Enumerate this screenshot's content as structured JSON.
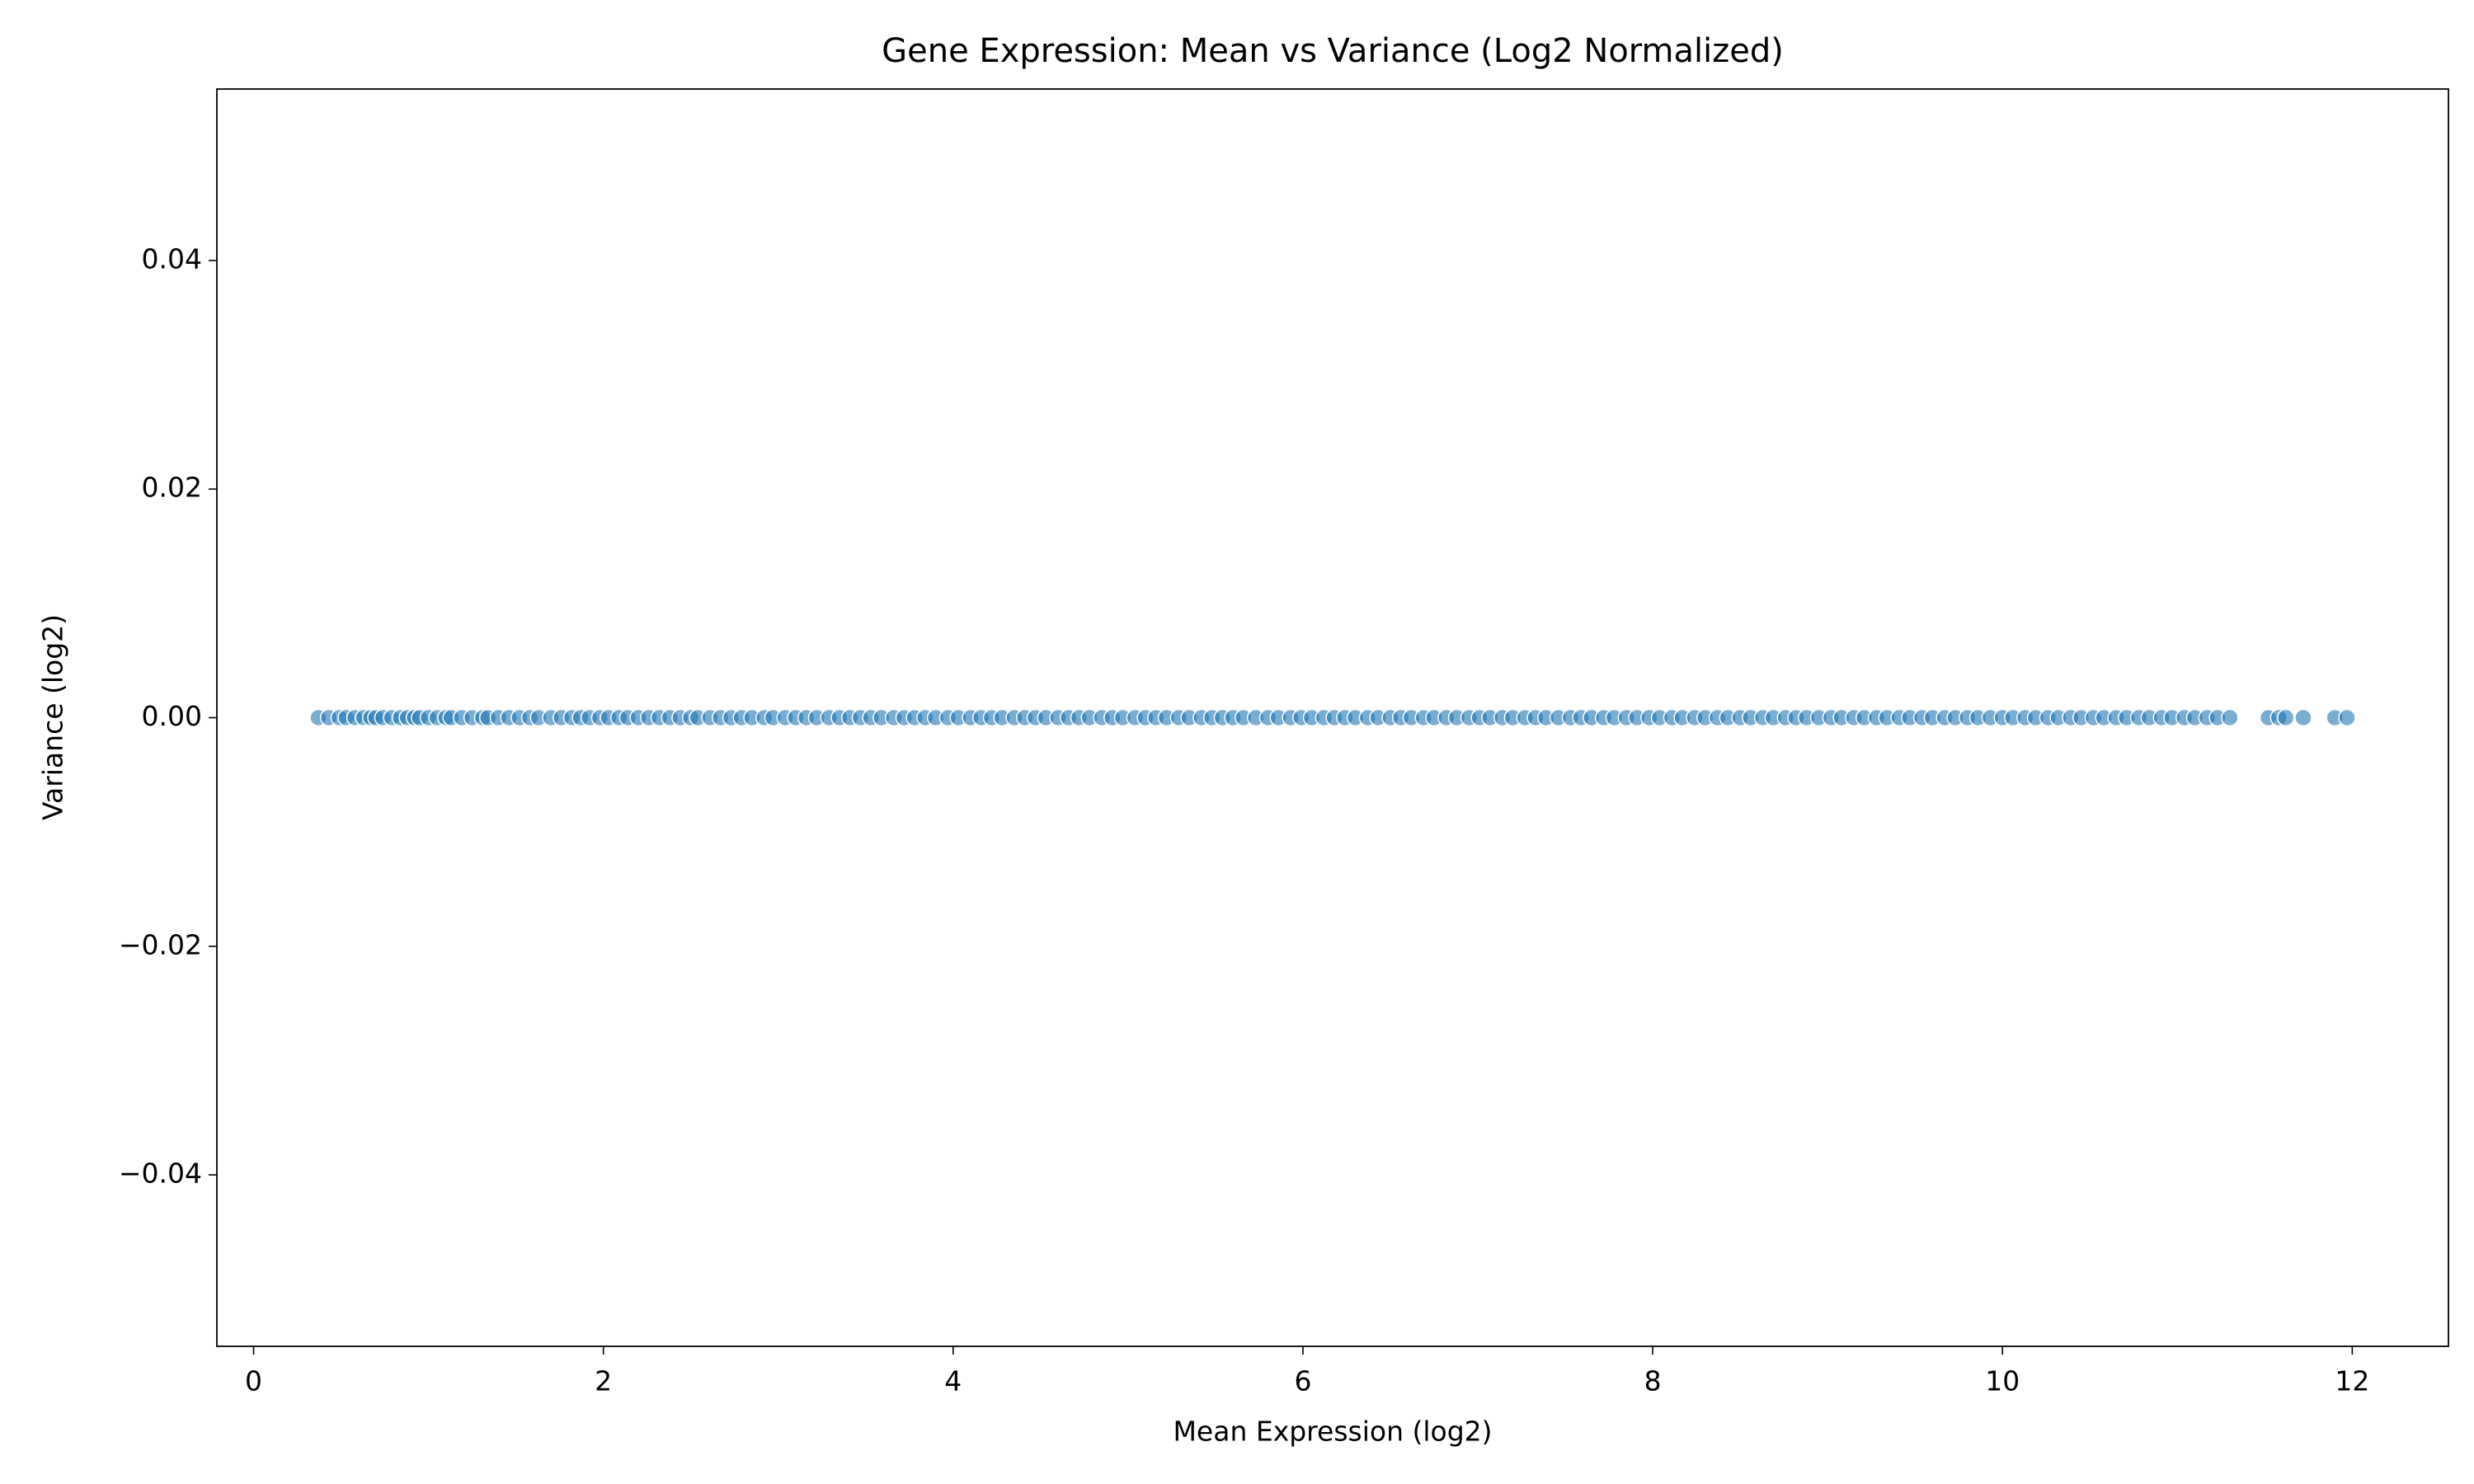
{
  "chart_data": {
    "type": "scatter",
    "title": "Gene Expression: Mean vs Variance (Log2 Normalized)",
    "xlabel": "Mean Expression (log2)",
    "ylabel": "Variance (log2)",
    "color": "#1f77b4",
    "x": [
      0.37,
      0.43,
      0.49,
      0.53,
      0.58,
      0.63,
      0.67,
      0.7,
      0.74,
      0.79,
      0.84,
      0.88,
      0.92,
      0.95,
      1.0,
      1.05,
      1.1,
      1.13,
      1.19,
      1.25,
      1.31,
      1.34,
      1.4,
      1.46,
      1.52,
      1.58,
      1.63,
      1.7,
      1.76,
      1.82,
      1.87,
      1.92,
      1.98,
      2.03,
      2.09,
      2.14,
      2.2,
      2.26,
      2.32,
      2.38,
      2.44,
      2.5,
      2.54,
      2.61,
      2.67,
      2.73,
      2.79,
      2.85,
      2.92,
      2.97,
      3.04,
      3.1,
      3.16,
      3.22,
      3.29,
      3.35,
      3.41,
      3.47,
      3.53,
      3.59,
      3.66,
      3.72,
      3.78,
      3.84,
      3.9,
      3.97,
      4.03,
      4.1,
      4.16,
      4.22,
      4.28,
      4.35,
      4.41,
      4.47,
      4.53,
      4.6,
      4.66,
      4.72,
      4.78,
      4.85,
      4.91,
      4.97,
      5.04,
      5.1,
      5.16,
      5.22,
      5.29,
      5.35,
      5.42,
      5.48,
      5.54,
      5.6,
      5.66,
      5.73,
      5.8,
      5.86,
      5.93,
      5.99,
      6.05,
      6.12,
      6.18,
      6.24,
      6.3,
      6.37,
      6.43,
      6.5,
      6.56,
      6.62,
      6.69,
      6.75,
      6.82,
      6.88,
      6.95,
      7.01,
      7.07,
      7.14,
      7.2,
      7.27,
      7.33,
      7.39,
      7.46,
      7.53,
      7.59,
      7.65,
      7.72,
      7.78,
      7.85,
      7.91,
      7.98,
      8.04,
      8.11,
      8.17,
      8.24,
      8.3,
      8.37,
      8.43,
      8.5,
      8.56,
      8.63,
      8.69,
      8.76,
      8.82,
      8.88,
      8.95,
      9.02,
      9.08,
      9.15,
      9.21,
      9.28,
      9.34,
      9.41,
      9.47,
      9.54,
      9.6,
      9.67,
      9.73,
      9.8,
      9.86,
      9.93,
      10.0,
      10.06,
      10.13,
      10.19,
      10.26,
      10.32,
      10.39,
      10.45,
      10.52,
      10.58,
      10.65,
      10.71,
      10.78,
      10.84,
      10.91,
      10.97,
      11.04,
      11.1,
      11.17,
      11.23,
      11.3,
      11.52,
      11.58,
      11.62,
      11.72,
      11.9,
      11.97
    ],
    "values": [
      0,
      0,
      0,
      0,
      0,
      0,
      0,
      0,
      0,
      0,
      0,
      0,
      0,
      0,
      0,
      0,
      0,
      0,
      0,
      0,
      0,
      0,
      0,
      0,
      0,
      0,
      0,
      0,
      0,
      0,
      0,
      0,
      0,
      0,
      0,
      0,
      0,
      0,
      0,
      0,
      0,
      0,
      0,
      0,
      0,
      0,
      0,
      0,
      0,
      0,
      0,
      0,
      0,
      0,
      0,
      0,
      0,
      0,
      0,
      0,
      0,
      0,
      0,
      0,
      0,
      0,
      0,
      0,
      0,
      0,
      0,
      0,
      0,
      0,
      0,
      0,
      0,
      0,
      0,
      0,
      0,
      0,
      0,
      0,
      0,
      0,
      0,
      0,
      0,
      0,
      0,
      0,
      0,
      0,
      0,
      0,
      0,
      0,
      0,
      0,
      0,
      0,
      0,
      0,
      0,
      0,
      0,
      0,
      0,
      0,
      0,
      0,
      0,
      0,
      0,
      0,
      0,
      0,
      0,
      0,
      0,
      0,
      0,
      0,
      0,
      0,
      0,
      0,
      0,
      0,
      0,
      0,
      0,
      0,
      0,
      0,
      0,
      0,
      0,
      0,
      0,
      0,
      0,
      0,
      0,
      0,
      0,
      0,
      0,
      0,
      0,
      0,
      0,
      0,
      0,
      0,
      0,
      0,
      0,
      0,
      0,
      0,
      0,
      0,
      0,
      0,
      0,
      0,
      0,
      0,
      0,
      0,
      0,
      0,
      0,
      0,
      0,
      0,
      0,
      0,
      0,
      0,
      0,
      0,
      0,
      0
    ],
    "xlim": [
      -0.21,
      12.55
    ],
    "ylim": [
      -0.055,
      0.055
    ],
    "xticks": [
      0,
      2,
      4,
      6,
      8,
      10,
      12
    ],
    "yticks": [
      {
        "value": -0.04,
        "label": "−0.04"
      },
      {
        "value": -0.02,
        "label": "−0.02"
      },
      {
        "value": 0,
        "label": "0.00"
      },
      0.02,
      0.04
    ],
    "grid": false
  }
}
